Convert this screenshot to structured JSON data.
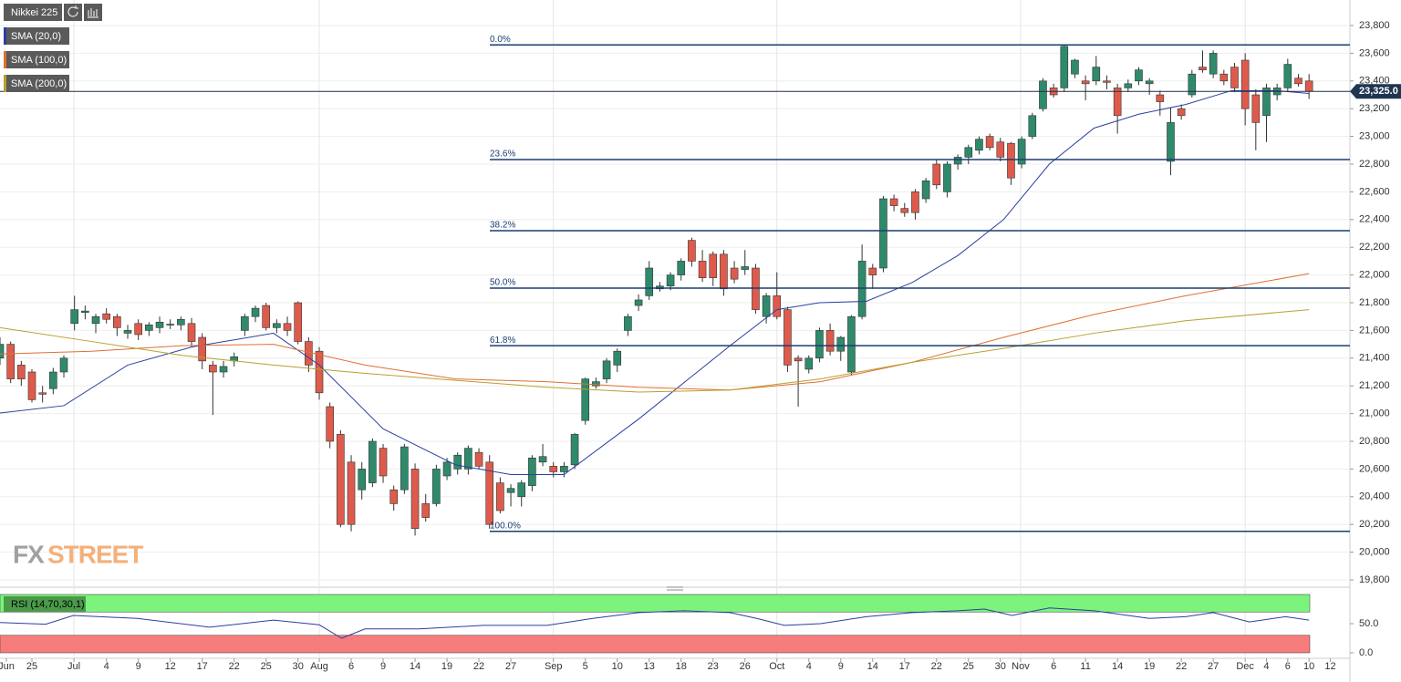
{
  "chart_data": [
    {
      "type": "candlestick",
      "title": "Nikkei 225",
      "up_color": "#2f8a6b",
      "down_color": "#de5b4c",
      "open": [
        21400,
        21500,
        21350,
        21300,
        21150,
        21180,
        21300,
        21650,
        21730,
        21650,
        21720,
        21700,
        21580,
        21650,
        21600,
        21620,
        21640,
        21640,
        21650,
        21550,
        21350,
        21300,
        21380,
        21600,
        21700,
        21780,
        21620,
        21650,
        21800,
        21520,
        21450,
        21050,
        20850,
        20650,
        20450,
        20500,
        20750,
        20450,
        20450,
        20600,
        20350,
        20350,
        20550,
        20600,
        20600,
        20720,
        20650,
        20500,
        20430,
        20400,
        20480,
        20650,
        20620,
        20580,
        20630,
        20950,
        21200,
        21250,
        21350,
        21600,
        21780,
        21850,
        21900,
        21920,
        22000,
        22250,
        22100,
        22150,
        22150,
        22050,
        22040,
        22050,
        21700,
        21850,
        21750,
        21400,
        21320,
        21400,
        21600,
        21450,
        21300,
        21700,
        22050,
        22050,
        22550,
        22480,
        22600,
        22550,
        22800,
        22600,
        22800,
        22850,
        22900,
        23000,
        22960,
        22950,
        22800,
        23000,
        23200,
        23350,
        23350,
        23450,
        23400,
        23400,
        23400,
        23350,
        23350,
        23400,
        23380,
        23300,
        22820,
        23200,
        23300,
        23500,
        23450,
        23450,
        23500,
        23550,
        23300,
        23150,
        23300,
        23350,
        23420,
        23400
      ],
      "high": [
        21550,
        21520,
        21380,
        21320,
        21200,
        21330,
        21420,
        21850,
        21780,
        21720,
        21760,
        21720,
        21640,
        21680,
        21660,
        21700,
        21680,
        21700,
        21690,
        21580,
        21380,
        21380,
        21440,
        21720,
        21780,
        21800,
        21680,
        21700,
        21810,
        21550,
        21480,
        21080,
        20880,
        20700,
        20650,
        20820,
        20780,
        20480,
        20780,
        20640,
        20420,
        20630,
        20680,
        20720,
        20770,
        20750,
        20700,
        20540,
        20490,
        20520,
        20700,
        20780,
        20650,
        20650,
        20860,
        21260,
        21260,
        21400,
        21470,
        21720,
        21860,
        22100,
        21950,
        22020,
        22120,
        22270,
        22180,
        22170,
        22180,
        22100,
        22180,
        22080,
        21870,
        22020,
        21770,
        21420,
        21420,
        21620,
        21650,
        21560,
        21710,
        22220,
        22080,
        22570,
        22580,
        22520,
        22620,
        22700,
        22830,
        22820,
        22870,
        22940,
        23000,
        23020,
        22990,
        22960,
        23000,
        23170,
        23420,
        23380,
        23660,
        23560,
        23440,
        23580,
        23440,
        23380,
        23410,
        23500,
        23420,
        23330,
        23210,
        23230,
        23480,
        23620,
        23620,
        23480,
        23530,
        23600,
        23340,
        23380,
        23380,
        23560,
        23450,
        23450
      ],
      "low": [
        21350,
        21220,
        21200,
        21080,
        21080,
        21140,
        21260,
        21600,
        21680,
        21580,
        21650,
        21560,
        21540,
        21530,
        21560,
        21580,
        21610,
        21600,
        21480,
        21320,
        20990,
        21260,
        21340,
        21560,
        21660,
        21600,
        21580,
        21560,
        21500,
        21300,
        21100,
        20750,
        20180,
        20150,
        20380,
        20470,
        20500,
        20300,
        20420,
        20120,
        20220,
        20330,
        20520,
        20560,
        20560,
        20600,
        20170,
        20280,
        20330,
        20330,
        20440,
        20620,
        20540,
        20540,
        20600,
        20920,
        21180,
        21220,
        21300,
        21560,
        21740,
        21820,
        21880,
        21890,
        21960,
        22060,
        21950,
        21920,
        21850,
        21940,
        22000,
        21720,
        21650,
        21680,
        21300,
        21050,
        21290,
        21370,
        21420,
        21380,
        21280,
        21680,
        21900,
        22020,
        22460,
        22420,
        22400,
        22520,
        22620,
        22560,
        22760,
        22800,
        22870,
        22900,
        22820,
        22650,
        22770,
        22980,
        23180,
        23280,
        23320,
        23420,
        23260,
        23370,
        23340,
        23020,
        23320,
        23370,
        23300,
        23150,
        22720,
        23120,
        23280,
        23460,
        23420,
        23370,
        23320,
        23080,
        22900,
        22960,
        23260,
        23320,
        23360,
        23270
      ],
      "close": [
        21500,
        21250,
        21250,
        21100,
        21140,
        21300,
        21400,
        21750,
        21740,
        21700,
        21680,
        21620,
        21600,
        21570,
        21640,
        21660,
        21645,
        21680,
        21520,
        21380,
        21300,
        21340,
        21410,
        21700,
        21760,
        21620,
        21650,
        21600,
        21520,
        21350,
        21150,
        20800,
        20200,
        20200,
        20600,
        20800,
        20550,
        20350,
        20760,
        20170,
        20250,
        20600,
        20650,
        20700,
        20750,
        20620,
        20200,
        20300,
        20460,
        20500,
        20680,
        20690,
        20580,
        20620,
        20850,
        21250,
        21230,
        21380,
        21450,
        21700,
        21820,
        22050,
        21920,
        22000,
        22100,
        22100,
        21980,
        21980,
        21900,
        21970,
        22060,
        21750,
        21850,
        21700,
        21350,
        21380,
        21400,
        21600,
        21450,
        21550,
        21700,
        22100,
        22000,
        22550,
        22500,
        22450,
        22450,
        22680,
        22650,
        22800,
        22850,
        22920,
        22980,
        22920,
        22850,
        22700,
        22980,
        23150,
        23400,
        23300,
        23650,
        23550,
        23380,
        23500,
        23390,
        23150,
        23380,
        23480,
        23400,
        23250,
        23100,
        23150,
        23450,
        23480,
        23600,
        23400,
        23350,
        23200,
        23100,
        23350,
        23350,
        23520,
        23380,
        23325
      ],
      "series": [
        {
          "name": "SMA (20,0)",
          "color": "#2b3f9e",
          "x": [
            0,
            6,
            12,
            18,
            25.7,
            30,
            36,
            42.8,
            48,
            53,
            60,
            68.6,
            73,
            77,
            81.4,
            85.7,
            90,
            94.3,
            98.6,
            102.8,
            107,
            111.4,
            115.7,
            120,
            123
          ],
          "values": [
            21004,
            21057,
            21350,
            21480,
            21580,
            21350,
            20890,
            20630,
            20560,
            20560,
            20960,
            21490,
            21750,
            21800,
            21810,
            21945,
            22140,
            22400,
            22800,
            23060,
            23160,
            23230,
            23330,
            23330,
            23310
          ]
        },
        {
          "name": "SMA (100,0)",
          "color": "#e07030",
          "x": [
            0,
            8.6,
            17.1,
            25.7,
            34.3,
            42.8,
            51.4,
            60,
            68.6,
            77.1,
            85.7,
            94.3,
            102.8,
            111.4,
            123
          ],
          "values": [
            21430,
            21450,
            21490,
            21500,
            21350,
            21250,
            21230,
            21190,
            21170,
            21230,
            21370,
            21550,
            21715,
            21850,
            22010
          ]
        },
        {
          "name": "SMA (200,0)",
          "color": "#b8a030",
          "x": [
            0,
            8.6,
            17.1,
            25.7,
            34.3,
            42.8,
            51.4,
            60,
            68.6,
            77.1,
            85.7,
            94.3,
            102.8,
            111.4,
            123
          ],
          "values": [
            21620,
            21520,
            21420,
            21350,
            21290,
            21240,
            21190,
            21155,
            21170,
            21250,
            21370,
            21470,
            21580,
            21670,
            21750
          ]
        }
      ],
      "fib_levels": [
        {
          "label": "0.0%",
          "value": 23660
        },
        {
          "label": "23.6%",
          "value": 22833
        },
        {
          "label": "38.2%",
          "value": 22320
        },
        {
          "label": "50.0%",
          "value": 21905
        },
        {
          "label": "61.8%",
          "value": 21490
        },
        {
          "label": "100.0%",
          "value": 20150
        }
      ],
      "last_price": {
        "value": 23325,
        "label": "23,325.0"
      },
      "xlim": [
        0,
        126.5
      ],
      "xticks": [
        {
          "value": 0.6,
          "label": "Jun"
        },
        {
          "value": 3,
          "label": "25"
        },
        {
          "value": 6.95,
          "label": "Jul"
        },
        {
          "value": 10,
          "label": "4"
        },
        {
          "value": 13,
          "label": "9"
        },
        {
          "value": 16,
          "label": "12"
        },
        {
          "value": 19,
          "label": "17"
        },
        {
          "value": 22,
          "label": "22"
        },
        {
          "value": 25,
          "label": "25"
        },
        {
          "value": 28,
          "label": "30"
        },
        {
          "value": 30,
          "label": "Aug"
        },
        {
          "value": 33,
          "label": "6"
        },
        {
          "value": 36,
          "label": "9"
        },
        {
          "value": 39,
          "label": "14"
        },
        {
          "value": 42,
          "label": "19"
        },
        {
          "value": 45,
          "label": "22"
        },
        {
          "value": 48,
          "label": "27"
        },
        {
          "value": 52,
          "label": "Sep"
        },
        {
          "value": 55,
          "label": "5"
        },
        {
          "value": 58,
          "label": "10"
        },
        {
          "value": 61,
          "label": "13"
        },
        {
          "value": 64,
          "label": "18"
        },
        {
          "value": 67,
          "label": "23"
        },
        {
          "value": 70,
          "label": "26"
        },
        {
          "value": 73,
          "label": "Oct"
        },
        {
          "value": 76,
          "label": "4"
        },
        {
          "value": 79,
          "label": "9"
        },
        {
          "value": 82,
          "label": "14"
        },
        {
          "value": 85,
          "label": "17"
        },
        {
          "value": 88,
          "label": "22"
        },
        {
          "value": 91,
          "label": "25"
        },
        {
          "value": 94,
          "label": "30"
        },
        {
          "value": 95.9,
          "label": "Nov"
        },
        {
          "value": 99,
          "label": "6"
        },
        {
          "value": 102,
          "label": "11"
        },
        {
          "value": 105,
          "label": "14"
        },
        {
          "value": 108,
          "label": "19"
        },
        {
          "value": 111,
          "label": "22"
        },
        {
          "value": 114,
          "label": "27"
        },
        {
          "value": 117,
          "label": "Dec"
        },
        {
          "value": 119,
          "label": "4"
        },
        {
          "value": 121,
          "label": "6"
        },
        {
          "value": 123,
          "label": "10"
        },
        {
          "value": 125,
          "label": "12"
        }
      ],
      "ylim": [
        19800,
        23800
      ],
      "yticks": [
        {
          "value": 19800,
          "label": "19,800"
        },
        {
          "value": 20000,
          "label": "20,000"
        },
        {
          "value": 20200,
          "label": "20,200"
        },
        {
          "value": 20400,
          "label": "20,400"
        },
        {
          "value": 20600,
          "label": "20,600"
        },
        {
          "value": 20800,
          "label": "20,800"
        },
        {
          "value": 21000,
          "label": "21,000"
        },
        {
          "value": 21200,
          "label": "21,200"
        },
        {
          "value": 21400,
          "label": "21,400"
        },
        {
          "value": 21600,
          "label": "21,600"
        },
        {
          "value": 21800,
          "label": "21,800"
        },
        {
          "value": 22000,
          "label": "22,000"
        },
        {
          "value": 22200,
          "label": "22,200"
        },
        {
          "value": 22400,
          "label": "22,400"
        },
        {
          "value": 22600,
          "label": "22,600"
        },
        {
          "value": 22800,
          "label": "22,800"
        },
        {
          "value": 23000,
          "label": "23,000"
        },
        {
          "value": 23200,
          "label": "23,200"
        },
        {
          "value": 23400,
          "label": "23,400"
        },
        {
          "value": 23600,
          "label": "23,600"
        },
        {
          "value": 23800,
          "label": "23,800"
        }
      ],
      "grid": true,
      "watermark": {
        "fx": "FX",
        "street": "STREET"
      }
    },
    {
      "type": "line",
      "title": "RSI (14,70,30,1)",
      "color": "#2b3f9e",
      "x": [
        0,
        4.3,
        6.9,
        12.9,
        19.7,
        25.7,
        30,
        32.1,
        34.3,
        39.4,
        45.4,
        51.4,
        55.7,
        60,
        64.3,
        68.6,
        71.1,
        73.7,
        77.1,
        81.4,
        85.7,
        90,
        92.5,
        95.1,
        98.6,
        102.8,
        108,
        111.4,
        114,
        117.4,
        120.8,
        123
      ],
      "values": [
        52,
        49,
        64,
        59,
        44,
        56,
        48,
        25,
        41,
        41,
        47,
        47,
        59,
        69,
        72,
        69,
        59,
        47,
        50,
        62,
        69,
        72,
        75,
        64,
        77,
        72,
        59,
        62,
        69,
        53,
        62,
        56
      ],
      "upper_band": 70,
      "lower_band": 30,
      "upper_color": "#7cf37c",
      "lower_color": "#f77c7c",
      "ylim": [
        0,
        100
      ],
      "yticks": [
        {
          "value": 0,
          "label": "0.0"
        },
        {
          "value": 50,
          "label": "50.0"
        }
      ]
    }
  ]
}
